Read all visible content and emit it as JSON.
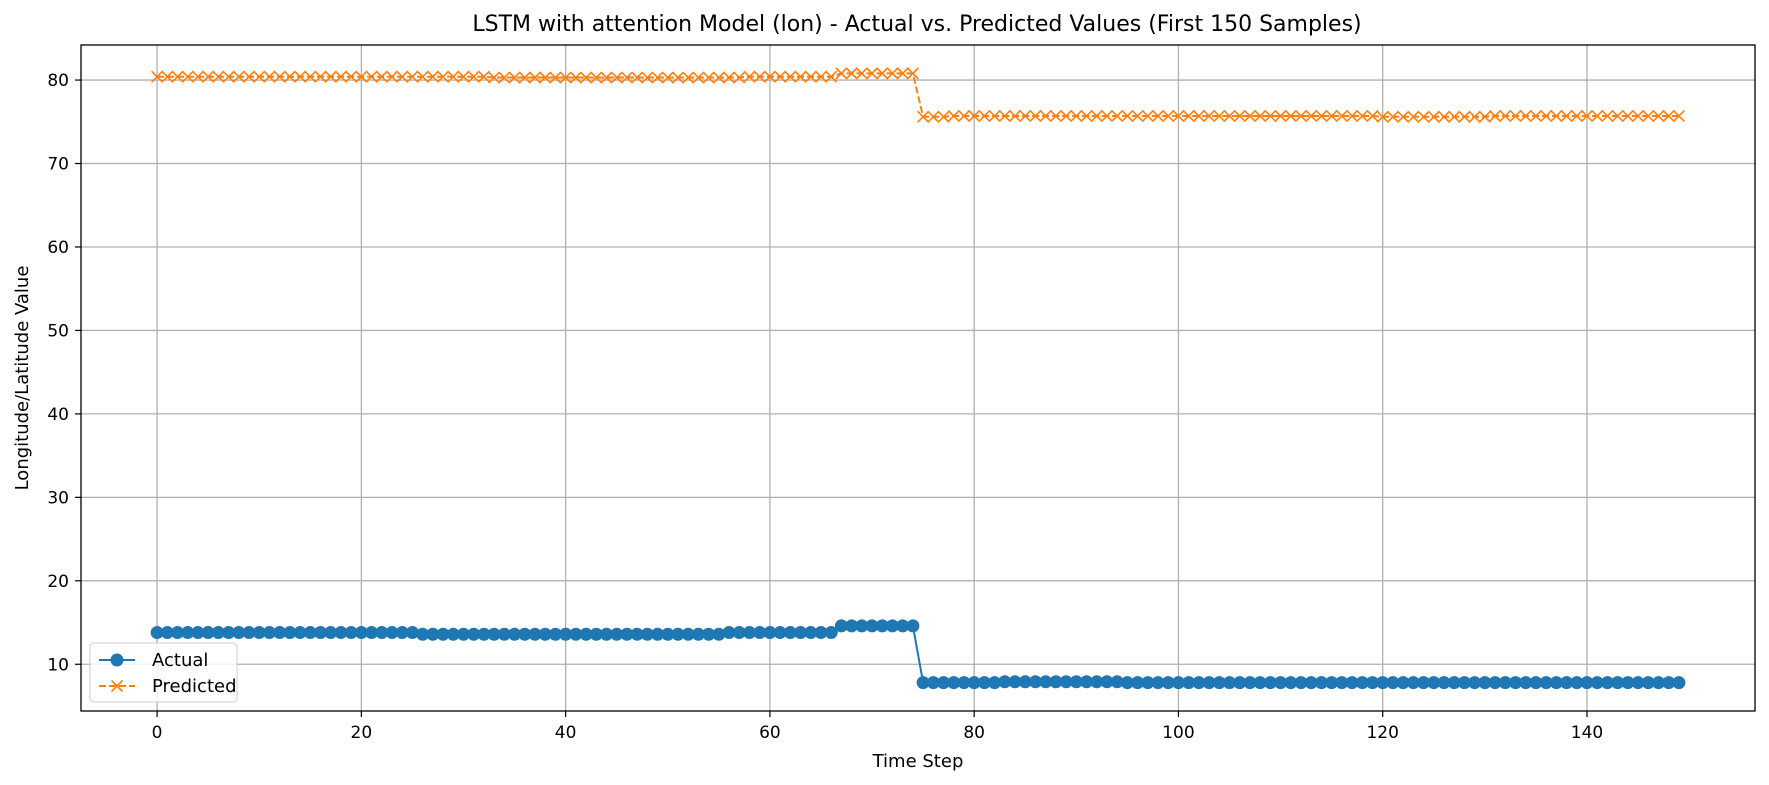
{
  "chart_data": {
    "type": "line",
    "title": "LSTM with attention Model (lon) - Actual vs. Predicted Values (First 150 Samples)",
    "xlabel": "Time Step",
    "ylabel": "Longitude/Latitude Value",
    "xlim": [
      -7.45,
      156.45
    ],
    "ylim": [
      4.4,
      84.2
    ],
    "xticks": [
      0,
      20,
      40,
      60,
      80,
      100,
      120,
      140
    ],
    "yticks": [
      10,
      20,
      30,
      40,
      50,
      60,
      70,
      80
    ],
    "grid": true,
    "legend_position": "lower-left",
    "series": [
      {
        "name": "Actual",
        "color": "#1f77b4",
        "line_style": "solid",
        "marker": "circle",
        "segments": [
          {
            "start": 0,
            "end": 25,
            "value": 13.8
          },
          {
            "start": 26,
            "end": 55,
            "value": 13.6
          },
          {
            "start": 56,
            "end": 66,
            "value": 13.8
          },
          {
            "start": 67,
            "end": 74,
            "value": 14.6
          },
          {
            "start": 75,
            "end": 82,
            "value": 7.8
          },
          {
            "start": 83,
            "end": 94,
            "value": 7.9
          },
          {
            "start": 95,
            "end": 149,
            "value": 7.8
          }
        ]
      },
      {
        "name": "Predicted",
        "color": "#ff7f0e",
        "line_style": "dashed",
        "marker": "x",
        "segments": [
          {
            "start": 0,
            "end": 32,
            "value": 80.4
          },
          {
            "start": 33,
            "end": 57,
            "value": 80.3
          },
          {
            "start": 58,
            "end": 66,
            "value": 80.4
          },
          {
            "start": 67,
            "end": 74,
            "value": 80.8
          },
          {
            "start": 75,
            "end": 77,
            "value": 75.6
          },
          {
            "start": 78,
            "end": 119,
            "value": 75.7
          },
          {
            "start": 120,
            "end": 130,
            "value": 75.6
          },
          {
            "start": 131,
            "end": 149,
            "value": 75.7
          }
        ]
      }
    ]
  }
}
